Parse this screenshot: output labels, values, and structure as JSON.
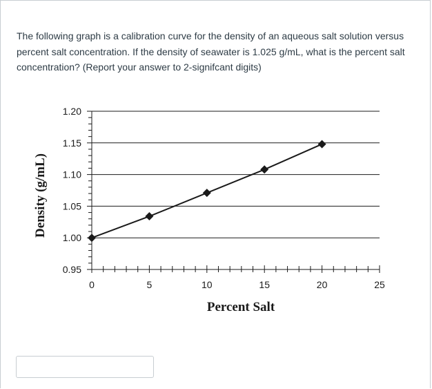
{
  "question": {
    "text": "The following graph is a calibration curve for the density of an aqueous salt solution versus percent salt concentration. If the density of seawater is 1.025 g/mL, what is the percent salt concentration? (Report your answer to 2-signifcant digits)"
  },
  "answer": {
    "value": ""
  },
  "chart_data": {
    "type": "line",
    "xlabel": "Percent Salt",
    "ylabel": "Density (g/mL)",
    "xlim": [
      0,
      25
    ],
    "ylim": [
      0.95,
      1.2
    ],
    "xticks": [
      0,
      5,
      10,
      15,
      20,
      25
    ],
    "xtick_labels": [
      "0",
      "5",
      "10",
      "15",
      "20",
      "25"
    ],
    "yticks": [
      0.95,
      1.0,
      1.05,
      1.1,
      1.15,
      1.2
    ],
    "ytick_labels": [
      "0.95",
      "1.00",
      "1.05",
      "1.10",
      "1.15",
      "1.20"
    ],
    "x_minor_step": 1,
    "y_minor_step": 0.01,
    "grid": "horizontal",
    "marker": "diamond",
    "series": [
      {
        "x": [
          0,
          5,
          10,
          15,
          20
        ],
        "y": [
          1.0,
          1.034,
          1.071,
          1.108,
          1.148
        ]
      }
    ]
  }
}
